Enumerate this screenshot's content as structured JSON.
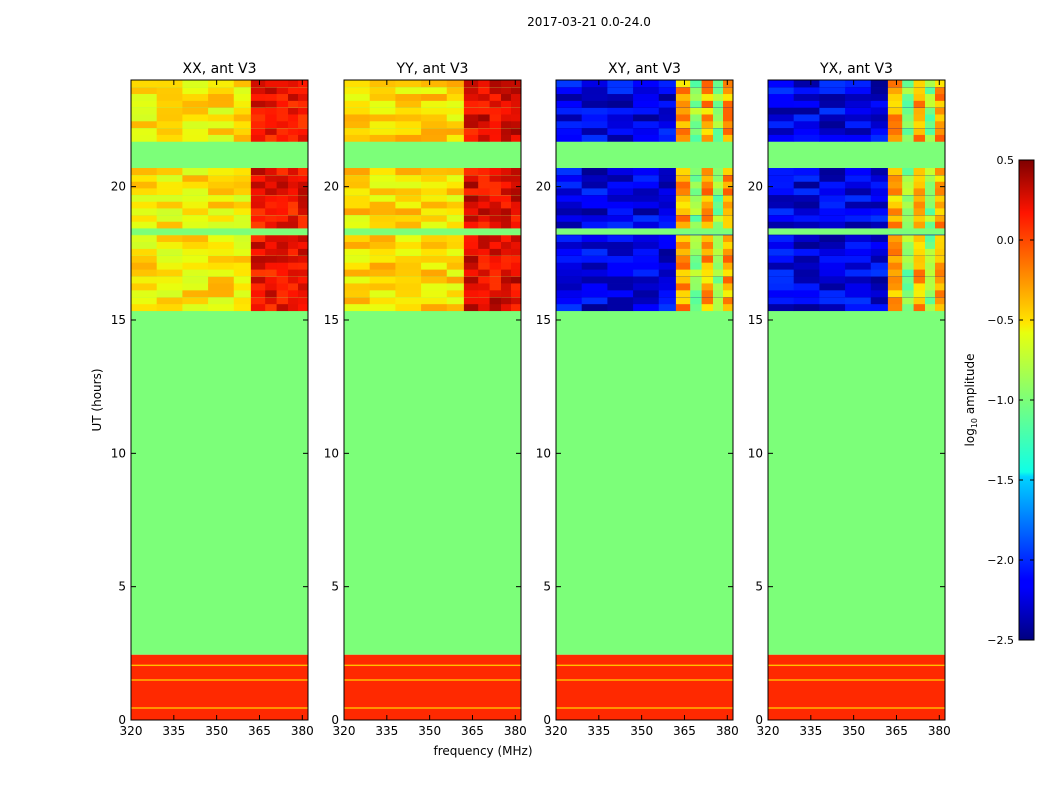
{
  "suptitle": "2017-03-21 0.0-24.0",
  "chart_data": {
    "type": "heatmap",
    "time_range": "0.0-24.0",
    "date": "2017-03-21",
    "xlabel": "frequency (MHz)",
    "ylabel": "UT (hours)",
    "xlim": [
      320,
      382
    ],
    "ylim": [
      0,
      24
    ],
    "xticks": [
      320,
      335,
      350,
      365,
      380
    ],
    "yticks": [
      0,
      5,
      10,
      15,
      20
    ],
    "no_data_value": -1.0,
    "colorbar": {
      "label": "log10 amplitude",
      "label_prefix": "log",
      "label_sub": "10",
      "label_suffix": " amplitude",
      "range": [
        -2.5,
        0.5
      ],
      "ticks": [
        -2.5,
        -2.0,
        -1.5,
        -1.0,
        -0.5,
        0.0,
        0.5
      ],
      "tick_labels": [
        "−2.5",
        "−2.0",
        "−1.5",
        "−1.0",
        "−0.5",
        "0.0",
        "0.5"
      ],
      "colormap": "jet"
    },
    "panels": [
      {
        "title": "XX, ant V3",
        "product": "XX",
        "description_levels": {
          "bands_0_2.5h": 0.1,
          "data_15.4_24h_low_freq": -0.5,
          "data_15.4_24h_high_freq": 0.2
        },
        "time_bands": [
          {
            "t0": 0.0,
            "t1": 2.45,
            "value": 0.1
          },
          {
            "t0": 2.45,
            "t1": 15.35,
            "value": -1.0
          },
          {
            "t0": 15.35,
            "t1": 18.2,
            "value": "data"
          },
          {
            "t0": 18.2,
            "t1": 18.45,
            "value": -1.0
          },
          {
            "t0": 18.45,
            "t1": 20.7,
            "value": "data"
          },
          {
            "t0": 20.7,
            "t1": 21.7,
            "value": -1.0
          },
          {
            "t0": 21.7,
            "t1": 24.0,
            "value": "data"
          }
        ]
      },
      {
        "title": "YY, ant V3",
        "product": "YY",
        "description_levels": {
          "bands_0_2.5h": 0.1,
          "data_15.4_24h_low_freq": -0.45,
          "data_15.4_24h_high_freq": 0.25
        },
        "time_bands": [
          {
            "t0": 0.0,
            "t1": 2.45,
            "value": 0.1
          },
          {
            "t0": 2.45,
            "t1": 15.35,
            "value": -1.0
          },
          {
            "t0": 15.35,
            "t1": 18.2,
            "value": "data"
          },
          {
            "t0": 18.2,
            "t1": 18.45,
            "value": -1.0
          },
          {
            "t0": 18.45,
            "t1": 20.7,
            "value": "data"
          },
          {
            "t0": 20.7,
            "t1": 21.7,
            "value": -1.0
          },
          {
            "t0": 21.7,
            "t1": 24.0,
            "value": "data"
          }
        ]
      },
      {
        "title": "XY, ant V3",
        "product": "XY",
        "description_levels": {
          "bands_0_2.5h": 0.1,
          "data_15.4_24h_low_freq": -2.2,
          "data_15.4_24h_high_freq": -0.3
        },
        "time_bands": [
          {
            "t0": 0.0,
            "t1": 2.45,
            "value": 0.1
          },
          {
            "t0": 2.45,
            "t1": 15.35,
            "value": -1.0
          },
          {
            "t0": 15.35,
            "t1": 18.2,
            "value": "data"
          },
          {
            "t0": 18.2,
            "t1": 18.45,
            "value": -1.0
          },
          {
            "t0": 18.45,
            "t1": 20.7,
            "value": "data"
          },
          {
            "t0": 20.7,
            "t1": 21.7,
            "value": -1.0
          },
          {
            "t0": 21.7,
            "t1": 24.0,
            "value": "data"
          }
        ]
      },
      {
        "title": "YX, ant V3",
        "product": "YX",
        "description_levels": {
          "bands_0_2.5h": 0.1,
          "data_15.4_24h_low_freq": -2.2,
          "data_15.4_24h_high_freq": -0.3
        },
        "time_bands": [
          {
            "t0": 0.0,
            "t1": 2.45,
            "value": 0.1
          },
          {
            "t0": 2.45,
            "t1": 15.35,
            "value": -1.0
          },
          {
            "t0": 15.35,
            "t1": 18.2,
            "value": "data"
          },
          {
            "t0": 18.2,
            "t1": 18.45,
            "value": -1.0
          },
          {
            "t0": 18.45,
            "t1": 20.7,
            "value": "data"
          },
          {
            "t0": 20.7,
            "t1": 21.7,
            "value": -1.0
          },
          {
            "t0": 21.7,
            "t1": 24.0,
            "value": "data"
          }
        ]
      }
    ]
  }
}
